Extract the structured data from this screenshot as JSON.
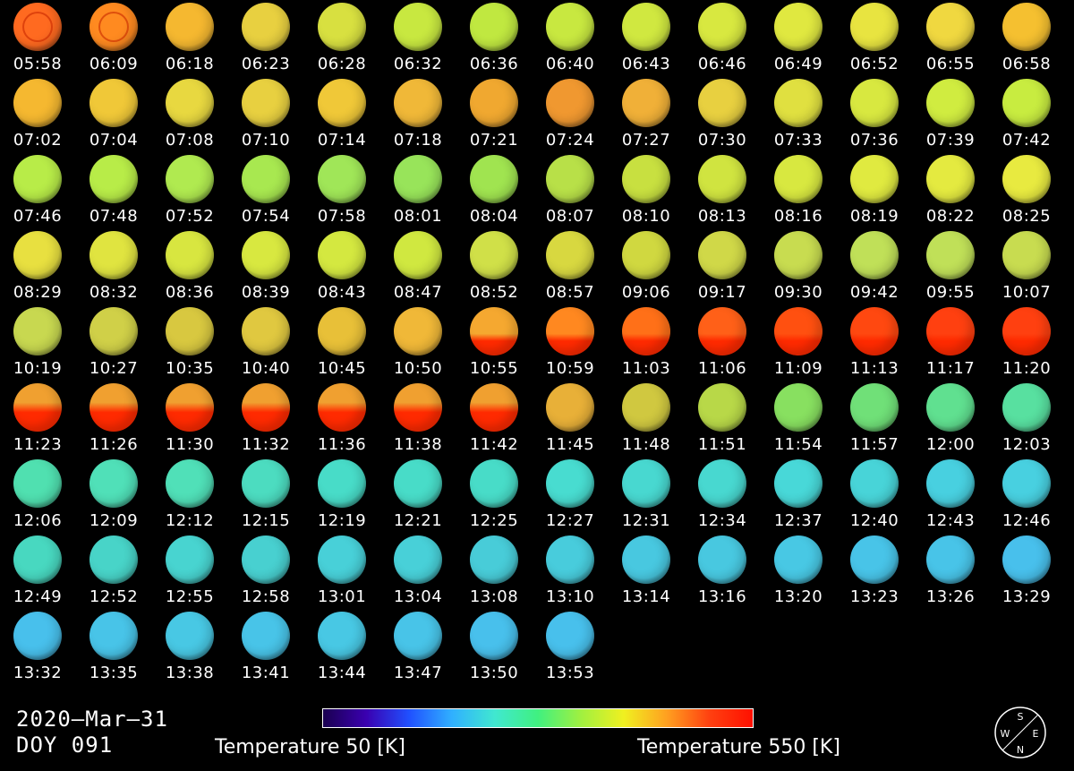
{
  "frames": [
    "05:58",
    "06:09",
    "06:18",
    "06:23",
    "06:28",
    "06:32",
    "06:36",
    "06:40",
    "06:43",
    "06:46",
    "06:49",
    "06:52",
    "06:55",
    "06:58",
    "07:02",
    "07:04",
    "07:08",
    "07:10",
    "07:14",
    "07:18",
    "07:21",
    "07:24",
    "07:27",
    "07:30",
    "07:33",
    "07:36",
    "07:39",
    "07:42",
    "07:46",
    "07:48",
    "07:52",
    "07:54",
    "07:58",
    "08:01",
    "08:04",
    "08:07",
    "08:10",
    "08:13",
    "08:16",
    "08:19",
    "08:22",
    "08:25",
    "08:29",
    "08:32",
    "08:36",
    "08:39",
    "08:43",
    "08:47",
    "08:52",
    "08:57",
    "09:06",
    "09:17",
    "09:30",
    "09:42",
    "09:55",
    "10:07",
    "10:19",
    "10:27",
    "10:35",
    "10:40",
    "10:45",
    "10:50",
    "10:55",
    "10:59",
    "11:03",
    "11:06",
    "11:09",
    "11:13",
    "11:17",
    "11:20",
    "11:23",
    "11:26",
    "11:30",
    "11:32",
    "11:36",
    "11:38",
    "11:42",
    "11:45",
    "11:48",
    "11:51",
    "11:54",
    "11:57",
    "12:00",
    "12:03",
    "12:06",
    "12:09",
    "12:12",
    "12:15",
    "12:19",
    "12:21",
    "12:25",
    "12:27",
    "12:31",
    "12:34",
    "12:37",
    "12:40",
    "12:43",
    "12:46",
    "12:49",
    "12:52",
    "12:55",
    "12:58",
    "13:01",
    "13:04",
    "13:08",
    "13:10",
    "13:14",
    "13:16",
    "13:20",
    "13:23",
    "13:26",
    "13:29",
    "13:32",
    "13:35",
    "13:38",
    "13:41",
    "13:44",
    "13:47",
    "13:50",
    "13:53"
  ],
  "date": "2020—Mar—31",
  "doy": "DOY 091",
  "colorbar": {
    "min_label": "Temperature 50 [K]",
    "max_label": "Temperature 550 [K]",
    "colors": [
      "#1a0050",
      "#3a00b0",
      "#2050ff",
      "#30b0ff",
      "#40e8d0",
      "#40f080",
      "#a0f040",
      "#f0f020",
      "#ffa020",
      "#ff4010",
      "#ff1000"
    ]
  },
  "compass": {
    "north": "N",
    "south": "S",
    "east": "E",
    "west": "W"
  }
}
